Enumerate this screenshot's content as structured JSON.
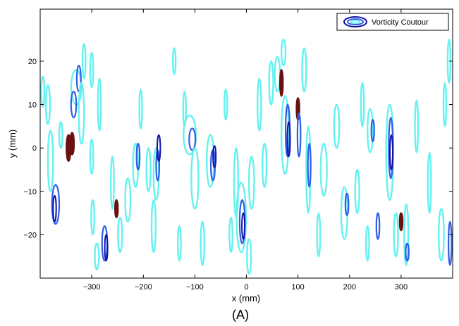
{
  "chart_data": {
    "type": "contour",
    "title": "",
    "xlabel": "x (mm)",
    "ylabel": "y (mm)",
    "xlim": [
      -400,
      400
    ],
    "ylim": [
      -30,
      32
    ],
    "xticks": [
      -300,
      -200,
      -100,
      0,
      100,
      200,
      300
    ],
    "yticks": [
      -20,
      -10,
      0,
      10,
      20
    ],
    "xtick_labels": [
      "−300",
      "−200",
      "−100",
      "0",
      "100",
      "200",
      "300"
    ],
    "ytick_labels": [
      "−20",
      "−10",
      "0",
      "10",
      "20"
    ],
    "legend": {
      "label": "Vorticity Coutour",
      "position": "top-right"
    },
    "caption": "(A)",
    "colors": {
      "low": "#66f2f0",
      "mid": "#2f5fe6",
      "high": "#1212a8",
      "peak": "#6b1010"
    },
    "contour_levels": [
      "low",
      "mid",
      "high",
      "peak"
    ],
    "blobs": [
      {
        "x": -395,
        "y": 13,
        "w": 6,
        "h": 7,
        "level": "low"
      },
      {
        "x": -385,
        "y": 10,
        "w": 8,
        "h": 9,
        "level": "low"
      },
      {
        "x": -380,
        "y": -3,
        "w": 10,
        "h": 14,
        "level": "low"
      },
      {
        "x": -370,
        "y": -13,
        "w": 14,
        "h": 9,
        "level": "mid"
      },
      {
        "x": -372,
        "y": -14,
        "w": 6,
        "h": 6,
        "level": "high"
      },
      {
        "x": -360,
        "y": 3,
        "w": 6,
        "h": 6,
        "level": "low"
      },
      {
        "x": -345,
        "y": 0,
        "w": 8,
        "h": 6,
        "level": "peak"
      },
      {
        "x": -338,
        "y": 1,
        "w": 7,
        "h": 5,
        "level": "peak"
      },
      {
        "x": -330,
        "y": 14,
        "w": 20,
        "h": 8,
        "level": "low"
      },
      {
        "x": -335,
        "y": 10,
        "w": 10,
        "h": 6,
        "level": "mid"
      },
      {
        "x": -325,
        "y": 16,
        "w": 8,
        "h": 6,
        "level": "mid"
      },
      {
        "x": -320,
        "y": 8,
        "w": 10,
        "h": 14,
        "level": "low"
      },
      {
        "x": -315,
        "y": 20,
        "w": 6,
        "h": 8,
        "level": "low"
      },
      {
        "x": -300,
        "y": 18,
        "w": 6,
        "h": 8,
        "level": "low"
      },
      {
        "x": -300,
        "y": -2,
        "w": 6,
        "h": 8,
        "level": "low"
      },
      {
        "x": -298,
        "y": -16,
        "w": 6,
        "h": 8,
        "level": "low"
      },
      {
        "x": -290,
        "y": -25,
        "w": 8,
        "h": 6,
        "level": "low"
      },
      {
        "x": -285,
        "y": 10,
        "w": 6,
        "h": 12,
        "level": "low"
      },
      {
        "x": -275,
        "y": -22,
        "w": 10,
        "h": 8,
        "level": "mid"
      },
      {
        "x": -272,
        "y": -23,
        "w": 5,
        "h": 6,
        "level": "high"
      },
      {
        "x": -260,
        "y": -8,
        "w": 6,
        "h": 12,
        "level": "low"
      },
      {
        "x": -252,
        "y": -14,
        "w": 4,
        "h": 4,
        "level": "peak"
      },
      {
        "x": -245,
        "y": -20,
        "w": 8,
        "h": 8,
        "level": "low"
      },
      {
        "x": -230,
        "y": -12,
        "w": 10,
        "h": 10,
        "level": "low"
      },
      {
        "x": -215,
        "y": -4,
        "w": 10,
        "h": 10,
        "level": "low"
      },
      {
        "x": -210,
        "y": -2,
        "w": 6,
        "h": 6,
        "level": "mid"
      },
      {
        "x": -205,
        "y": 9,
        "w": 5,
        "h": 9,
        "level": "low"
      },
      {
        "x": -190,
        "y": -5,
        "w": 8,
        "h": 10,
        "level": "low"
      },
      {
        "x": -180,
        "y": -18,
        "w": 8,
        "h": 12,
        "level": "low"
      },
      {
        "x": -175,
        "y": -6,
        "w": 10,
        "h": 12,
        "level": "low"
      },
      {
        "x": -172,
        "y": -4,
        "w": 6,
        "h": 7,
        "level": "mid"
      },
      {
        "x": -170,
        "y": 0,
        "w": 6,
        "h": 6,
        "level": "high"
      },
      {
        "x": -140,
        "y": 20,
        "w": 5,
        "h": 6,
        "level": "low"
      },
      {
        "x": -130,
        "y": -22,
        "w": 6,
        "h": 8,
        "level": "low"
      },
      {
        "x": -120,
        "y": 9,
        "w": 5,
        "h": 8,
        "level": "low"
      },
      {
        "x": -110,
        "y": 3,
        "w": 24,
        "h": 9,
        "level": "low"
      },
      {
        "x": -105,
        "y": 2,
        "w": 12,
        "h": 5,
        "level": "mid"
      },
      {
        "x": -100,
        "y": -7,
        "w": 14,
        "h": 14,
        "level": "low"
      },
      {
        "x": -85,
        "y": -22,
        "w": 7,
        "h": 10,
        "level": "low"
      },
      {
        "x": -70,
        "y": -3,
        "w": 14,
        "h": 12,
        "level": "low"
      },
      {
        "x": -65,
        "y": -4,
        "w": 8,
        "h": 7,
        "level": "mid"
      },
      {
        "x": -62,
        "y": -2,
        "w": 4,
        "h": 5,
        "level": "high"
      },
      {
        "x": -40,
        "y": 10,
        "w": 5,
        "h": 7,
        "level": "low"
      },
      {
        "x": -30,
        "y": -20,
        "w": 6,
        "h": 8,
        "level": "low"
      },
      {
        "x": -20,
        "y": -8,
        "w": 8,
        "h": 16,
        "level": "low"
      },
      {
        "x": -10,
        "y": -16,
        "w": 18,
        "h": 16,
        "level": "low"
      },
      {
        "x": -8,
        "y": -17,
        "w": 10,
        "h": 10,
        "level": "mid"
      },
      {
        "x": -6,
        "y": -18,
        "w": 5,
        "h": 6,
        "level": "high"
      },
      {
        "x": 10,
        "y": -8,
        "w": 10,
        "h": 12,
        "level": "low"
      },
      {
        "x": 5,
        "y": -25,
        "w": 8,
        "h": 8,
        "level": "low"
      },
      {
        "x": 25,
        "y": 10,
        "w": 7,
        "h": 12,
        "level": "low"
      },
      {
        "x": 35,
        "y": -4,
        "w": 8,
        "h": 10,
        "level": "low"
      },
      {
        "x": 48,
        "y": 15,
        "w": 8,
        "h": 10,
        "level": "low"
      },
      {
        "x": 60,
        "y": 17,
        "w": 10,
        "h": 8,
        "level": "low"
      },
      {
        "x": 68,
        "y": 15,
        "w": 5,
        "h": 6,
        "level": "peak"
      },
      {
        "x": 72,
        "y": 22,
        "w": 8,
        "h": 6,
        "level": "low"
      },
      {
        "x": 75,
        "y": 3,
        "w": 14,
        "h": 18,
        "level": "low"
      },
      {
        "x": 80,
        "y": 4,
        "w": 8,
        "h": 12,
        "level": "mid"
      },
      {
        "x": 82,
        "y": 2,
        "w": 4,
        "h": 8,
        "level": "high"
      },
      {
        "x": 100,
        "y": 9,
        "w": 5,
        "h": 5,
        "level": "peak"
      },
      {
        "x": 102,
        "y": 3,
        "w": 6,
        "h": 10,
        "level": "mid"
      },
      {
        "x": 112,
        "y": 18,
        "w": 8,
        "h": 10,
        "level": "low"
      },
      {
        "x": 120,
        "y": -5,
        "w": 8,
        "h": 20,
        "level": "low"
      },
      {
        "x": 122,
        "y": -4,
        "w": 4,
        "h": 10,
        "level": "mid"
      },
      {
        "x": 150,
        "y": -5,
        "w": 12,
        "h": 12,
        "level": "low"
      },
      {
        "x": 140,
        "y": -20,
        "w": 6,
        "h": 10,
        "level": "low"
      },
      {
        "x": 175,
        "y": 5,
        "w": 10,
        "h": 10,
        "level": "low"
      },
      {
        "x": 190,
        "y": -15,
        "w": 12,
        "h": 12,
        "level": "low"
      },
      {
        "x": 195,
        "y": -13,
        "w": 6,
        "h": 5,
        "level": "mid"
      },
      {
        "x": 215,
        "y": -10,
        "w": 8,
        "h": 10,
        "level": "low"
      },
      {
        "x": 225,
        "y": 10,
        "w": 6,
        "h": 10,
        "level": "low"
      },
      {
        "x": 235,
        "y": -22,
        "w": 6,
        "h": 8,
        "level": "low"
      },
      {
        "x": 240,
        "y": 4,
        "w": 10,
        "h": 10,
        "level": "low"
      },
      {
        "x": 245,
        "y": 4,
        "w": 5,
        "h": 5,
        "level": "mid"
      },
      {
        "x": 255,
        "y": -18,
        "w": 6,
        "h": 6,
        "level": "mid"
      },
      {
        "x": 278,
        "y": -1,
        "w": 14,
        "h": 22,
        "level": "low"
      },
      {
        "x": 280,
        "y": 0,
        "w": 8,
        "h": 14,
        "level": "mid"
      },
      {
        "x": 281,
        "y": -1,
        "w": 4,
        "h": 8,
        "level": "high"
      },
      {
        "x": 290,
        "y": -20,
        "w": 8,
        "h": 10,
        "level": "low"
      },
      {
        "x": 300,
        "y": -17,
        "w": 4,
        "h": 4,
        "level": "peak"
      },
      {
        "x": 310,
        "y": -20,
        "w": 8,
        "h": 14,
        "level": "low"
      },
      {
        "x": 312,
        "y": -24,
        "w": 6,
        "h": 4,
        "level": "mid"
      },
      {
        "x": 330,
        "y": 5,
        "w": 6,
        "h": 12,
        "level": "low"
      },
      {
        "x": 355,
        "y": -8,
        "w": 6,
        "h": 14,
        "level": "low"
      },
      {
        "x": 378,
        "y": -20,
        "w": 10,
        "h": 12,
        "level": "low"
      },
      {
        "x": 385,
        "y": 10,
        "w": 5,
        "h": 10,
        "level": "low"
      },
      {
        "x": 393,
        "y": 20,
        "w": 5,
        "h": 10,
        "level": "low"
      },
      {
        "x": 395,
        "y": -22,
        "w": 6,
        "h": 10,
        "level": "mid"
      }
    ]
  }
}
